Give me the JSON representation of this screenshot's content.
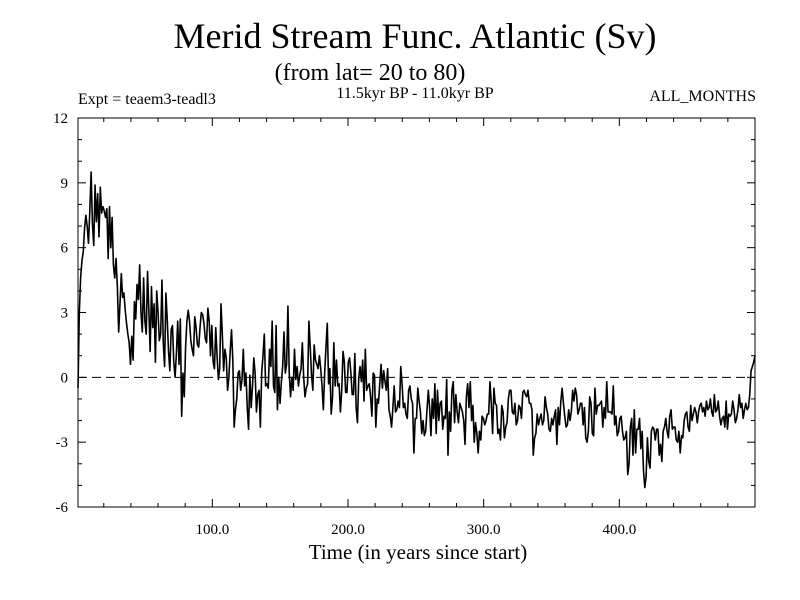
{
  "header": {
    "title": "Merid Stream Func. Atlantic (Sv)",
    "subtitle": "(from lat= 20 to 80)",
    "expt": "Expt = teaem3-teadl3",
    "period": "11.5kyr BP - 11.0kyr BP",
    "months": "ALL_MONTHS"
  },
  "chart_data": {
    "type": "line",
    "title": "Merid Stream Func. Atlantic (Sv)",
    "subtitle": "(from lat= 20 to 80)",
    "xlabel": "Time (in years since start)",
    "ylabel": "",
    "xlim": [
      1,
      500
    ],
    "ylim": [
      -6,
      12
    ],
    "x_ticks": [
      100,
      200,
      300,
      400
    ],
    "x_tick_labels": [
      "100.0",
      "200.0",
      "300.0",
      "400.0"
    ],
    "y_ticks": [
      -6,
      -3,
      0,
      3,
      6,
      9,
      12
    ],
    "y_tick_labels": [
      "-6",
      "-3",
      "0",
      "3",
      "6",
      "9",
      "12"
    ],
    "reference_line": {
      "y": 0,
      "style": "dashed"
    },
    "grid": false,
    "series": [
      {
        "values": [
          -0.5,
          3.0,
          4.6,
          5.4,
          5.8,
          6.9,
          7.5,
          7.0,
          6.2,
          7.7,
          9.5,
          7.1,
          6.1,
          8.9,
          7.2,
          8.5,
          6.5,
          8.8,
          7.6,
          7.9,
          7.7,
          7.4,
          7.8,
          5.5,
          7.9,
          6.0,
          7.4,
          5.2,
          4.6,
          5.5,
          4.2,
          2.1,
          3.4,
          4.8,
          3.7,
          3.9,
          3.1,
          2.5,
          2.0,
          1.6,
          0.6,
          1.9,
          0.8,
          3.5,
          2.7,
          4.3,
          3.6,
          5.2,
          3.0,
          2.1,
          4.6,
          2.6,
          2.0,
          4.9,
          3.1,
          1.2,
          4.2,
          2.3,
          3.4,
          0.7,
          4.0,
          3.0,
          1.7,
          2.0,
          4.5,
          1.6,
          0.5,
          3.9,
          2.7,
          1.2,
          0.3,
          2.2,
          2.4,
          0.7,
          0.0,
          1.1,
          2.6,
          0.6,
          2.7,
          -1.8,
          0.2,
          -0.9,
          1.4,
          2.6,
          3.1,
          2.6,
          1.7,
          1.3,
          1.0,
          2.8,
          2.3,
          1.5,
          1.4,
          2.3,
          3.0,
          2.9,
          2.5,
          1.8,
          1.6,
          3.2,
          2.6,
          1.0,
          2.4,
          0.7,
          0.4,
          2.3,
          1.0,
          -0.1,
          0.4,
          3.4,
          2.0,
          0.3,
          1.3,
          0.9,
          -0.6,
          0.0,
          1.2,
          2.2,
          0.8,
          -2.3,
          -1.5,
          -1.0,
          0.2,
          0.3,
          -0.6,
          -0.1,
          1.3,
          -0.4,
          0.2,
          -1.4,
          -2.4,
          0.1,
          -1.4,
          -0.4,
          0.9,
          0.2,
          -1.6,
          -0.8,
          -0.6,
          -2.3,
          0.2,
          1.0,
          2.0,
          -0.4,
          -0.3,
          -0.5,
          1.3,
          0.5,
          2.6,
          -0.4,
          -0.7,
          2.4,
          -1.5,
          0.0,
          -1.2,
          -0.2,
          0.5,
          2.1,
          0.2,
          0.6,
          3.3,
          0.2,
          -0.9,
          0.0,
          -0.6,
          1.3,
          -0.1,
          0.5,
          -0.4,
          0.1,
          0.4,
          1.6,
          0.0,
          -0.9,
          -0.5,
          -0.3,
          2.6,
          1.4,
          0.1,
          -0.6,
          1.5,
          0.8,
          0.6,
          0.4,
          1.0,
          0.4,
          -0.4,
          -1.5,
          0.2,
          1.4,
          2.5,
          -0.3,
          0.4,
          -1.7,
          -0.9,
          1.6,
          -0.4,
          0.8,
          -0.4,
          -0.3,
          -1.6,
          -0.6,
          1.2,
          0.7,
          -0.7,
          -0.7,
          0.7,
          0.9,
          0.2,
          -0.8,
          -0.8,
          1.1,
          -1.4,
          -2.1,
          0.0,
          0.5,
          -0.2,
          0.8,
          -1.1,
          1.3,
          -0.6,
          -0.4,
          -0.3,
          -0.9,
          -1.8,
          0.2,
          0.1,
          -2.3,
          -1.0,
          -1.2,
          -0.3,
          0.6,
          -0.5,
          0.3,
          -0.2,
          -0.6,
          0.4,
          -1.5,
          -1.8,
          -2.3,
          -1.4,
          -0.4,
          -1.6,
          -1.5,
          -1.1,
          -1.4,
          0.5,
          -0.3,
          -1.4,
          -1.2,
          -1.7,
          -1.9,
          -0.6,
          -0.4,
          -1.0,
          -1.2,
          -3.5,
          -1.9,
          -1.9,
          -0.5,
          -1.1,
          -1.6,
          -2.6,
          -2.0,
          -2.7,
          -2.5,
          -1.5,
          -0.6,
          -1.4,
          -2.7,
          -1.0,
          -1.9,
          -0.3,
          -2.6,
          -0.6,
          -2.0,
          -1.2,
          -1.1,
          -2.4,
          -1.8,
          -1.9,
          -0.1,
          -3.6,
          -1.6,
          -2.5,
          -0.6,
          -0.2,
          -2.1,
          -0.8,
          -1.6,
          -2.1,
          -1.2,
          -1.4,
          -1.6,
          -2.0,
          -3.1,
          -0.9,
          -0.3,
          -1.4,
          -0.2,
          -2.0,
          -1.3,
          -3.0,
          -2.1,
          -2.6,
          -3.5,
          -2.5,
          -2.9,
          -1.8,
          -1.9,
          -2.2,
          -2.0,
          -1.7,
          -1.7,
          -0.2,
          -1.2,
          -2.6,
          -0.5,
          -1.2,
          -1.3,
          -2.6,
          -2.4,
          -2.9,
          -1.3,
          -1.6,
          -2.8,
          -2.3,
          -2.1,
          -1.0,
          -0.6,
          -0.6,
          -1.6,
          -1.7,
          -1.2,
          -2.2,
          -2.0,
          -1.3,
          -1.4,
          -1.9,
          -0.7,
          -0.6,
          -0.8,
          -0.9,
          -0.6,
          -1.2,
          -1.2,
          -1.5,
          -3.6,
          -2.8,
          -2.6,
          -1.7,
          -2.2,
          -1.9,
          -1.7,
          -2.2,
          -2.0,
          -0.9,
          -1.4,
          -1.7,
          -2.4,
          -2.5,
          -1.9,
          -2.2,
          -1.8,
          -1.5,
          -3.1,
          -1.4,
          -2.2,
          -1.1,
          -0.5,
          -1.2,
          -1.8,
          -2.3,
          -2.2,
          -1.5,
          -2.0,
          -1.6,
          -0.6,
          -1.1,
          -0.5,
          -0.8,
          -1.7,
          -1.5,
          -1.2,
          -1.2,
          -2.2,
          -1.4,
          -2.8,
          -3.0,
          -2.5,
          -0.9,
          -1.2,
          -2.6,
          -2.7,
          -0.5,
          -1.7,
          -1.3,
          -1.3,
          -1.2,
          -1.1,
          -2.3,
          -1.4,
          -1.9,
          -0.2,
          -1.6,
          -1.6,
          -1.6,
          -1.7,
          -0.4,
          -2.2,
          -1.8,
          -2.7,
          -2.5,
          -1.9,
          -1.8,
          -2.5,
          -2.9,
          -2.8,
          -2.5,
          -4.5,
          -4.0,
          -2.3,
          -1.9,
          -3.6,
          -1.5,
          -3.5,
          -2.4,
          -2.4,
          -1.9,
          -3.3,
          -2.5,
          -4.3,
          -5.1,
          -4.6,
          -2.8,
          -3.9,
          -4.2,
          -2.5,
          -2.3,
          -2.4,
          -2.9,
          -2.4,
          -2.4,
          -3.6,
          -3.1,
          -3.9,
          -2.5,
          -2.3,
          -1.9,
          -2.5,
          -2.8,
          -1.8,
          -1.5,
          -2.4,
          -2.3,
          -2.3,
          -2.9,
          -3.0,
          -2.5,
          -3.5,
          -2.7,
          -2.8,
          -2.0,
          -1.7,
          -1.6,
          -2.3,
          -2.5,
          -1.3,
          -2.0,
          -1.7,
          -1.4,
          -1.6,
          -2.1,
          -1.6,
          -1.3,
          -1.2,
          -1.6,
          -1.4,
          -1.8,
          -1.1,
          -1.5,
          -1.4,
          -1.0,
          -1.6,
          -1.8,
          -0.8,
          -1.6,
          -1.5,
          -1.1,
          -1.8,
          -2.2,
          -1.9,
          -1.8,
          -2.3,
          -1.1,
          -2.4,
          -1.7,
          -1.8,
          -1.7,
          -1.1,
          -1.5,
          -2.1,
          -1.9,
          -1.5,
          -0.8,
          -1.4,
          -1.2,
          -1.9,
          -1.5,
          -1.2,
          -1.5,
          -1.4,
          -0.8,
          0.3,
          0.5,
          0.7,
          1.0
        ]
      }
    ]
  }
}
